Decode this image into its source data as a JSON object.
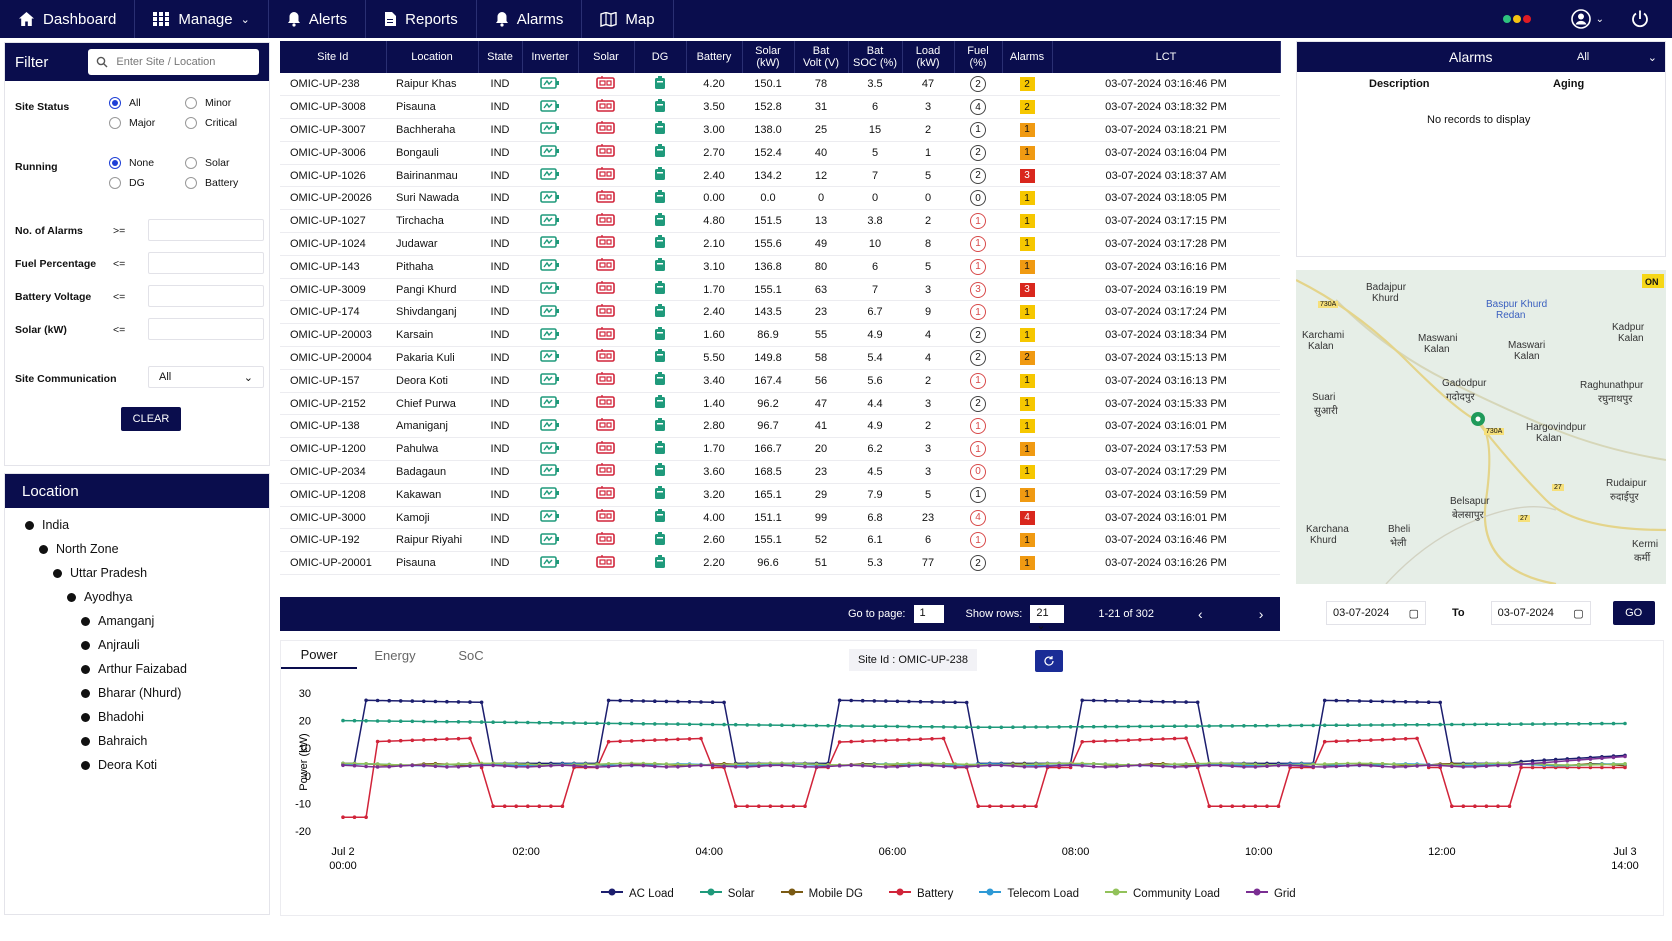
{
  "nav": {
    "items": [
      {
        "label": "Dashboard",
        "icon": "home-icon",
        "chev": false
      },
      {
        "label": "Manage",
        "icon": "grid-icon",
        "chev": true
      },
      {
        "label": "Alerts",
        "icon": "bell-icon",
        "chev": false
      },
      {
        "label": "Reports",
        "icon": "document-icon",
        "chev": false
      },
      {
        "label": "Alarms",
        "icon": "bell-icon",
        "chev": false
      },
      {
        "label": "Map",
        "icon": "map-icon",
        "chev": false
      }
    ],
    "status_dots": [
      "#2ec27e",
      "#f5c211",
      "#e01b24"
    ]
  },
  "filter": {
    "title": "Filter",
    "search_placeholder": "Enter Site / Location",
    "site_status_label": "Site Status",
    "site_status_options": [
      "All",
      "Minor",
      "Major",
      "Critical"
    ],
    "site_status_selected": "All",
    "running_label": "Running",
    "running_options": [
      "None",
      "Solar",
      "DG",
      "Battery"
    ],
    "running_selected": "None",
    "fields": [
      {
        "label": "No. of Alarms",
        "op": ">="
      },
      {
        "label": "Fuel Percentage",
        "op": "<="
      },
      {
        "label": "Battery Voltage",
        "op": "<="
      },
      {
        "label": "Solar (kW)",
        "op": "<="
      }
    ],
    "comm_label": "Site Communication",
    "comm_value": "All",
    "clear_label": "CLEAR"
  },
  "location": {
    "title": "Location",
    "tree": [
      {
        "label": "India",
        "level": 0
      },
      {
        "label": "North Zone",
        "level": 1
      },
      {
        "label": "Uttar Pradesh",
        "level": 2
      },
      {
        "label": "Ayodhya",
        "level": 3
      },
      {
        "label": "Amanganj",
        "level": 4
      },
      {
        "label": "Anjrauli",
        "level": 4
      },
      {
        "label": "Arthur Faizabad",
        "level": 4
      },
      {
        "label": "Bharar (Nhurd)",
        "level": 4
      },
      {
        "label": "Bhadohi",
        "level": 4
      },
      {
        "label": "Bahraich",
        "level": 4
      },
      {
        "label": "Deora Koti",
        "level": 4
      }
    ]
  },
  "table": {
    "headers": [
      "Site Id",
      "Location",
      "State",
      "Inverter",
      "Solar",
      "DG",
      "Battery",
      "Solar\n(kW)",
      "Bat\nVolt (V)",
      "Bat\nSOC (%)",
      "Load\n(kW)",
      "Fuel\n(%)",
      "Alarms",
      "LCT"
    ],
    "rows": [
      [
        "OMIC-UP-238",
        "Raipur Khas",
        "IND",
        "4.20",
        "150.1",
        "78",
        "3.5",
        "47",
        "2",
        "2",
        "03-07-2024 03:16:46 PM"
      ],
      [
        "OMIC-UP-3008",
        "Pisauna",
        "IND",
        "3.50",
        "152.8",
        "31",
        "6",
        "3",
        "4",
        "2",
        "03-07-2024 03:18:32 PM"
      ],
      [
        "OMIC-UP-3007",
        "Bachheraha",
        "IND",
        "3.00",
        "138.0",
        "25",
        "15",
        "2",
        "1",
        "1",
        "03-07-2024 03:18:21 PM"
      ],
      [
        "OMIC-UP-3006",
        "Bongauli",
        "IND",
        "2.70",
        "152.4",
        "40",
        "5",
        "1",
        "2",
        "1",
        "03-07-2024 03:16:04 PM"
      ],
      [
        "OMIC-UP-1026",
        "Bairinanmau",
        "IND",
        "2.40",
        "134.2",
        "12",
        "7",
        "5",
        "2",
        "3",
        "03-07-2024 03:18:37 AM"
      ],
      [
        "OMIC-UP-20026",
        "Suri Nawada",
        "IND",
        "0.00",
        "0.0",
        "0",
        "0",
        "0",
        "0",
        "1",
        "03-07-2024 03:18:05 PM"
      ],
      [
        "OMIC-UP-1027",
        "Tirchacha",
        "IND",
        "4.80",
        "151.5",
        "13",
        "3.8",
        "2",
        "1",
        "1",
        "03-07-2024 03:17:15 PM"
      ],
      [
        "OMIC-UP-1024",
        "Judawar",
        "IND",
        "2.10",
        "155.6",
        "49",
        "10",
        "8",
        "1",
        "1",
        "03-07-2024 03:17:28 PM"
      ],
      [
        "OMIC-UP-143",
        "Pithaha",
        "IND",
        "3.10",
        "136.8",
        "80",
        "6",
        "5",
        "1",
        "1",
        "03-07-2024 03:16:16 PM"
      ],
      [
        "OMIC-UP-3009",
        "Pangi Khurd",
        "IND",
        "1.70",
        "155.1",
        "63",
        "7",
        "3",
        "3",
        "3",
        "03-07-2024 03:16:19 PM"
      ],
      [
        "OMIC-UP-174",
        "Shivdanganj",
        "IND",
        "2.40",
        "143.5",
        "23",
        "6.7",
        "9",
        "1",
        "1",
        "03-07-2024 03:17:24 PM"
      ],
      [
        "OMIC-UP-20003",
        "Karsain",
        "IND",
        "1.60",
        "86.9",
        "55",
        "4.9",
        "4",
        "2",
        "1",
        "03-07-2024 03:18:34 PM"
      ],
      [
        "OMIC-UP-20004",
        "Pakaria Kuli",
        "IND",
        "5.50",
        "149.8",
        "58",
        "5.4",
        "4",
        "2",
        "2",
        "03-07-2024 03:15:13 PM"
      ],
      [
        "OMIC-UP-157",
        "Deora Koti",
        "IND",
        "3.40",
        "167.4",
        "56",
        "5.6",
        "2",
        "1",
        "1",
        "03-07-2024 03:16:13 PM"
      ],
      [
        "OMIC-UP-2152",
        "Chief Purwa",
        "IND",
        "1.40",
        "96.2",
        "47",
        "4.4",
        "3",
        "2",
        "1",
        "03-07-2024 03:15:33 PM"
      ],
      [
        "OMIC-UP-138",
        "Amaniganj",
        "IND",
        "2.80",
        "96.7",
        "41",
        "4.9",
        "2",
        "1",
        "1",
        "03-07-2024 03:16:01 PM"
      ],
      [
        "OMIC-UP-1200",
        "Pahulwa",
        "IND",
        "1.70",
        "166.7",
        "20",
        "6.2",
        "3",
        "1",
        "1",
        "03-07-2024 03:17:53 PM"
      ],
      [
        "OMIC-UP-2034",
        "Badagaun",
        "IND",
        "3.60",
        "168.5",
        "23",
        "4.5",
        "3",
        "0",
        "1",
        "03-07-2024 03:17:29 PM"
      ],
      [
        "OMIC-UP-1208",
        "Kakawan",
        "IND",
        "3.20",
        "165.1",
        "29",
        "7.9",
        "5",
        "1",
        "1",
        "03-07-2024 03:16:59 PM"
      ],
      [
        "OMIC-UP-3000",
        "Kamoji",
        "IND",
        "4.00",
        "151.1",
        "99",
        "6.8",
        "23",
        "4",
        "4",
        "03-07-2024 03:16:01 PM"
      ],
      [
        "OMIC-UP-192",
        "Raipur Riyahi",
        "IND",
        "2.60",
        "155.1",
        "52",
        "6.1",
        "6",
        "1",
        "1",
        "03-07-2024 03:16:46 PM"
      ],
      [
        "OMIC-UP-20001",
        "Pisauna",
        "IND",
        "2.20",
        "96.6",
        "51",
        "5.3",
        "77",
        "2",
        "1",
        "03-07-2024 03:16:26 PM"
      ]
    ],
    "fuel_red_rows": [
      6,
      7,
      8,
      9,
      10,
      13,
      15,
      16,
      17,
      19,
      20
    ],
    "alarm_colors": {
      "1": "#f6c700",
      "2": "#f6c700",
      "3": "#d9271d",
      "4": "#d9271d"
    },
    "alarm_orange_rows": [
      2,
      3,
      8,
      12,
      16,
      18,
      20,
      21
    ]
  },
  "pager": {
    "goto_label": "Go to page:",
    "goto_value": "1",
    "rows_label": "Show rows:",
    "rows_value": "21",
    "range": "1-21 of 302"
  },
  "alarms": {
    "title": "Alarms",
    "filter_value": "All",
    "col_description": "Description",
    "col_aging": "Aging",
    "empty": "No records to display"
  },
  "map": {
    "labels": [
      {
        "t": "Badajpur"
      },
      {
        "t": "Khurd"
      },
      {
        "t": "Baspur Khurd"
      },
      {
        "t": "Redan"
      },
      {
        "t": "Karchami"
      },
      {
        "t": "Kalan"
      },
      {
        "t": "Maswani"
      },
      {
        "t": "Kalan"
      },
      {
        "t": "Maswari"
      },
      {
        "t": "Kalan"
      },
      {
        "t": "Kadpur"
      },
      {
        "t": "Kalan"
      },
      {
        "t": "Gadodpur"
      },
      {
        "t": "गदोदपुर"
      },
      {
        "t": "Raghunathpur"
      },
      {
        "t": "रघुनाथपुर"
      },
      {
        "t": "Suari"
      },
      {
        "t": "सुआरी"
      },
      {
        "t": "Hargovindpur"
      },
      {
        "t": "Kalan"
      },
      {
        "t": "Rudaipur"
      },
      {
        "t": "रुदाईपुर"
      },
      {
        "t": "Belsapur"
      },
      {
        "t": "बेलसापुर"
      },
      {
        "t": "Karchana"
      },
      {
        "t": "Khurd"
      },
      {
        "t": "Bheli"
      },
      {
        "t": "भेली"
      },
      {
        "t": "Kermi"
      },
      {
        "t": "कर्मी"
      }
    ],
    "badge": "ON",
    "road_730a": "730A",
    "road_27": "27"
  },
  "date": {
    "from": "03-07-2024",
    "to_label": "To",
    "to": "03-07-2024",
    "go": "GO"
  },
  "chart": {
    "tabs": [
      "Power",
      "Energy",
      "SoC"
    ],
    "active_tab": "Power",
    "site_label": "Site Id :  OMIC-UP-238",
    "chart_data": {
      "type": "line",
      "ylabel": "Power (kW)",
      "ylim": [
        -20,
        30
      ],
      "yticks": [
        30,
        20,
        10,
        0,
        -10,
        -20
      ],
      "xticks": [
        {
          "pos": 0,
          "l1": "Jul 2",
          "l2": "00:00"
        },
        {
          "pos": 2,
          "l1": "02:00",
          "l2": ""
        },
        {
          "pos": 4,
          "l1": "04:00",
          "l2": ""
        },
        {
          "pos": 6,
          "l1": "06:00",
          "l2": ""
        },
        {
          "pos": 8,
          "l1": "08:00",
          "l2": ""
        },
        {
          "pos": 10,
          "l1": "10:00",
          "l2": ""
        },
        {
          "pos": 12,
          "l1": "12:00",
          "l2": ""
        },
        {
          "pos": 14,
          "l1": "Jul 3",
          "l2": "14:00"
        }
      ],
      "series": [
        {
          "name": "AC Load",
          "color": "#1c1e6e"
        },
        {
          "name": "Solar",
          "color": "#1f9a7b"
        },
        {
          "name": "Mobile DG",
          "color": "#7a5a14"
        },
        {
          "name": "Battery",
          "color": "#d1243a"
        },
        {
          "name": "Telecom Load",
          "color": "#2e9ad6"
        },
        {
          "name": "Community Load",
          "color": "#92c25a"
        },
        {
          "name": "Grid",
          "color": "#7a2e92"
        }
      ]
    }
  }
}
